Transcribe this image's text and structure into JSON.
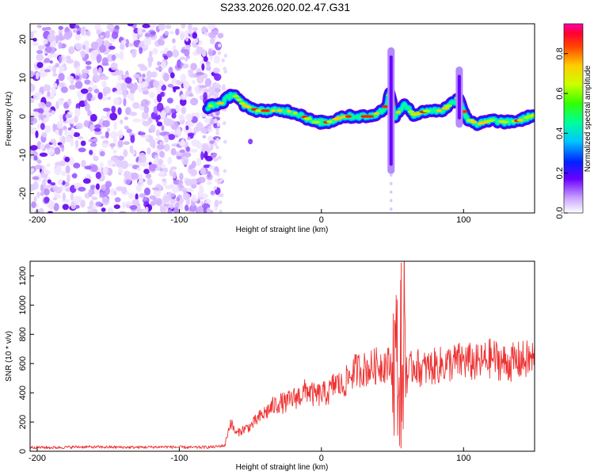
{
  "title": "S233.2026.020.02.47.G31",
  "chart_data": [
    {
      "type": "heatmap",
      "title": "S233.2026.020.02.47.G31",
      "xlabel": "Height of straight line (km)",
      "ylabel": "Frequency (Hz)",
      "xlim": [
        -205,
        150
      ],
      "ylim": [
        -25,
        24
      ],
      "xticks": [
        -200,
        -100,
        0,
        100
      ],
      "yticks": [
        -20,
        -10,
        0,
        10,
        20
      ],
      "colorbar": {
        "label": "Normalized spectral amplitude",
        "range": [
          0,
          0.95
        ],
        "ticks": [
          0.0,
          0.2,
          0.4,
          0.6,
          0.8
        ]
      },
      "noise_region_x": [
        -205,
        -75
      ],
      "ridge": {
        "x": [
          -80,
          -70,
          -62,
          -55,
          -45,
          -35,
          -25,
          -15,
          -5,
          5,
          15,
          25,
          35,
          45,
          48,
          52,
          58,
          65,
          75,
          85,
          92,
          97,
          102,
          110,
          120,
          130,
          140,
          150
        ],
        "y": [
          2.5,
          3.5,
          6,
          3,
          1.5,
          1.5,
          1.5,
          0.5,
          -1.5,
          -1.5,
          0,
          0,
          0,
          2,
          6,
          0,
          3,
          0.5,
          1.5,
          1.5,
          3.5,
          5,
          -0.5,
          -2,
          -1,
          -1.5,
          -1,
          0.5
        ]
      },
      "spikes": [
        {
          "x": 49,
          "y_range": [
            -14,
            17
          ]
        },
        {
          "x": 97,
          "y_range": [
            -2,
            12
          ]
        }
      ]
    },
    {
      "type": "line",
      "xlabel": "Height of straight line (km)",
      "ylabel": "SNR (10 * v/v)",
      "xlim": [
        -205,
        150
      ],
      "ylim": [
        0,
        1300
      ],
      "xticks": [
        -200,
        -100,
        0,
        100
      ],
      "yticks": [
        0,
        200,
        400,
        600,
        800,
        1000,
        1200
      ],
      "color": "#ee3333",
      "series": [
        {
          "name": "SNR",
          "x": [
            -205,
            -190,
            -170,
            -150,
            -130,
            -110,
            -90,
            -75,
            -68,
            -64,
            -60,
            -55,
            -50,
            -45,
            -40,
            -35,
            -30,
            -25,
            -20,
            -15,
            -10,
            -5,
            0,
            5,
            10,
            15,
            20,
            25,
            30,
            35,
            40,
            45,
            50,
            53,
            55,
            56,
            57,
            58,
            60,
            65,
            70,
            80,
            90,
            100,
            110,
            120,
            130,
            140,
            150
          ],
          "y": [
            28,
            25,
            30,
            28,
            27,
            30,
            26,
            30,
            40,
            200,
            120,
            150,
            170,
            220,
            260,
            300,
            330,
            330,
            360,
            380,
            420,
            380,
            390,
            400,
            470,
            440,
            520,
            560,
            560,
            570,
            590,
            600,
            580,
            650,
            300,
            850,
            200,
            1000,
            500,
            600,
            560,
            580,
            600,
            620,
            600,
            640,
            600,
            620,
            630
          ]
        }
      ]
    }
  ]
}
